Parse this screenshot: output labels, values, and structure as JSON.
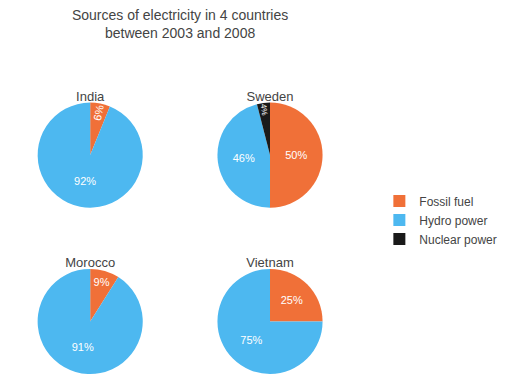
{
  "chart_data": {
    "type": "pie",
    "title": "Sources of electricity in 4 countries\nbetween 2003 and 2008",
    "categories": [
      "Fossil fuel",
      "Hydro power",
      "Nuclear power"
    ],
    "colors": [
      "#f07038",
      "#4db8f0",
      "#1a1a1a"
    ],
    "series": [
      {
        "name": "India",
        "values": [
          6,
          92,
          0
        ],
        "value_labels": [
          "6%",
          "92%",
          null
        ]
      },
      {
        "name": "Sweden",
        "values": [
          50,
          46,
          4
        ],
        "value_labels": [
          "50%",
          "46%",
          "4%"
        ]
      },
      {
        "name": "Morocco",
        "values": [
          9,
          91,
          0
        ],
        "value_labels": [
          "9%",
          "91%",
          null
        ]
      },
      {
        "name": "Vietnam",
        "values": [
          25,
          75,
          0
        ],
        "value_labels": [
          "25%",
          "75%",
          null
        ]
      }
    ],
    "data_labels": true,
    "legend": "right"
  }
}
